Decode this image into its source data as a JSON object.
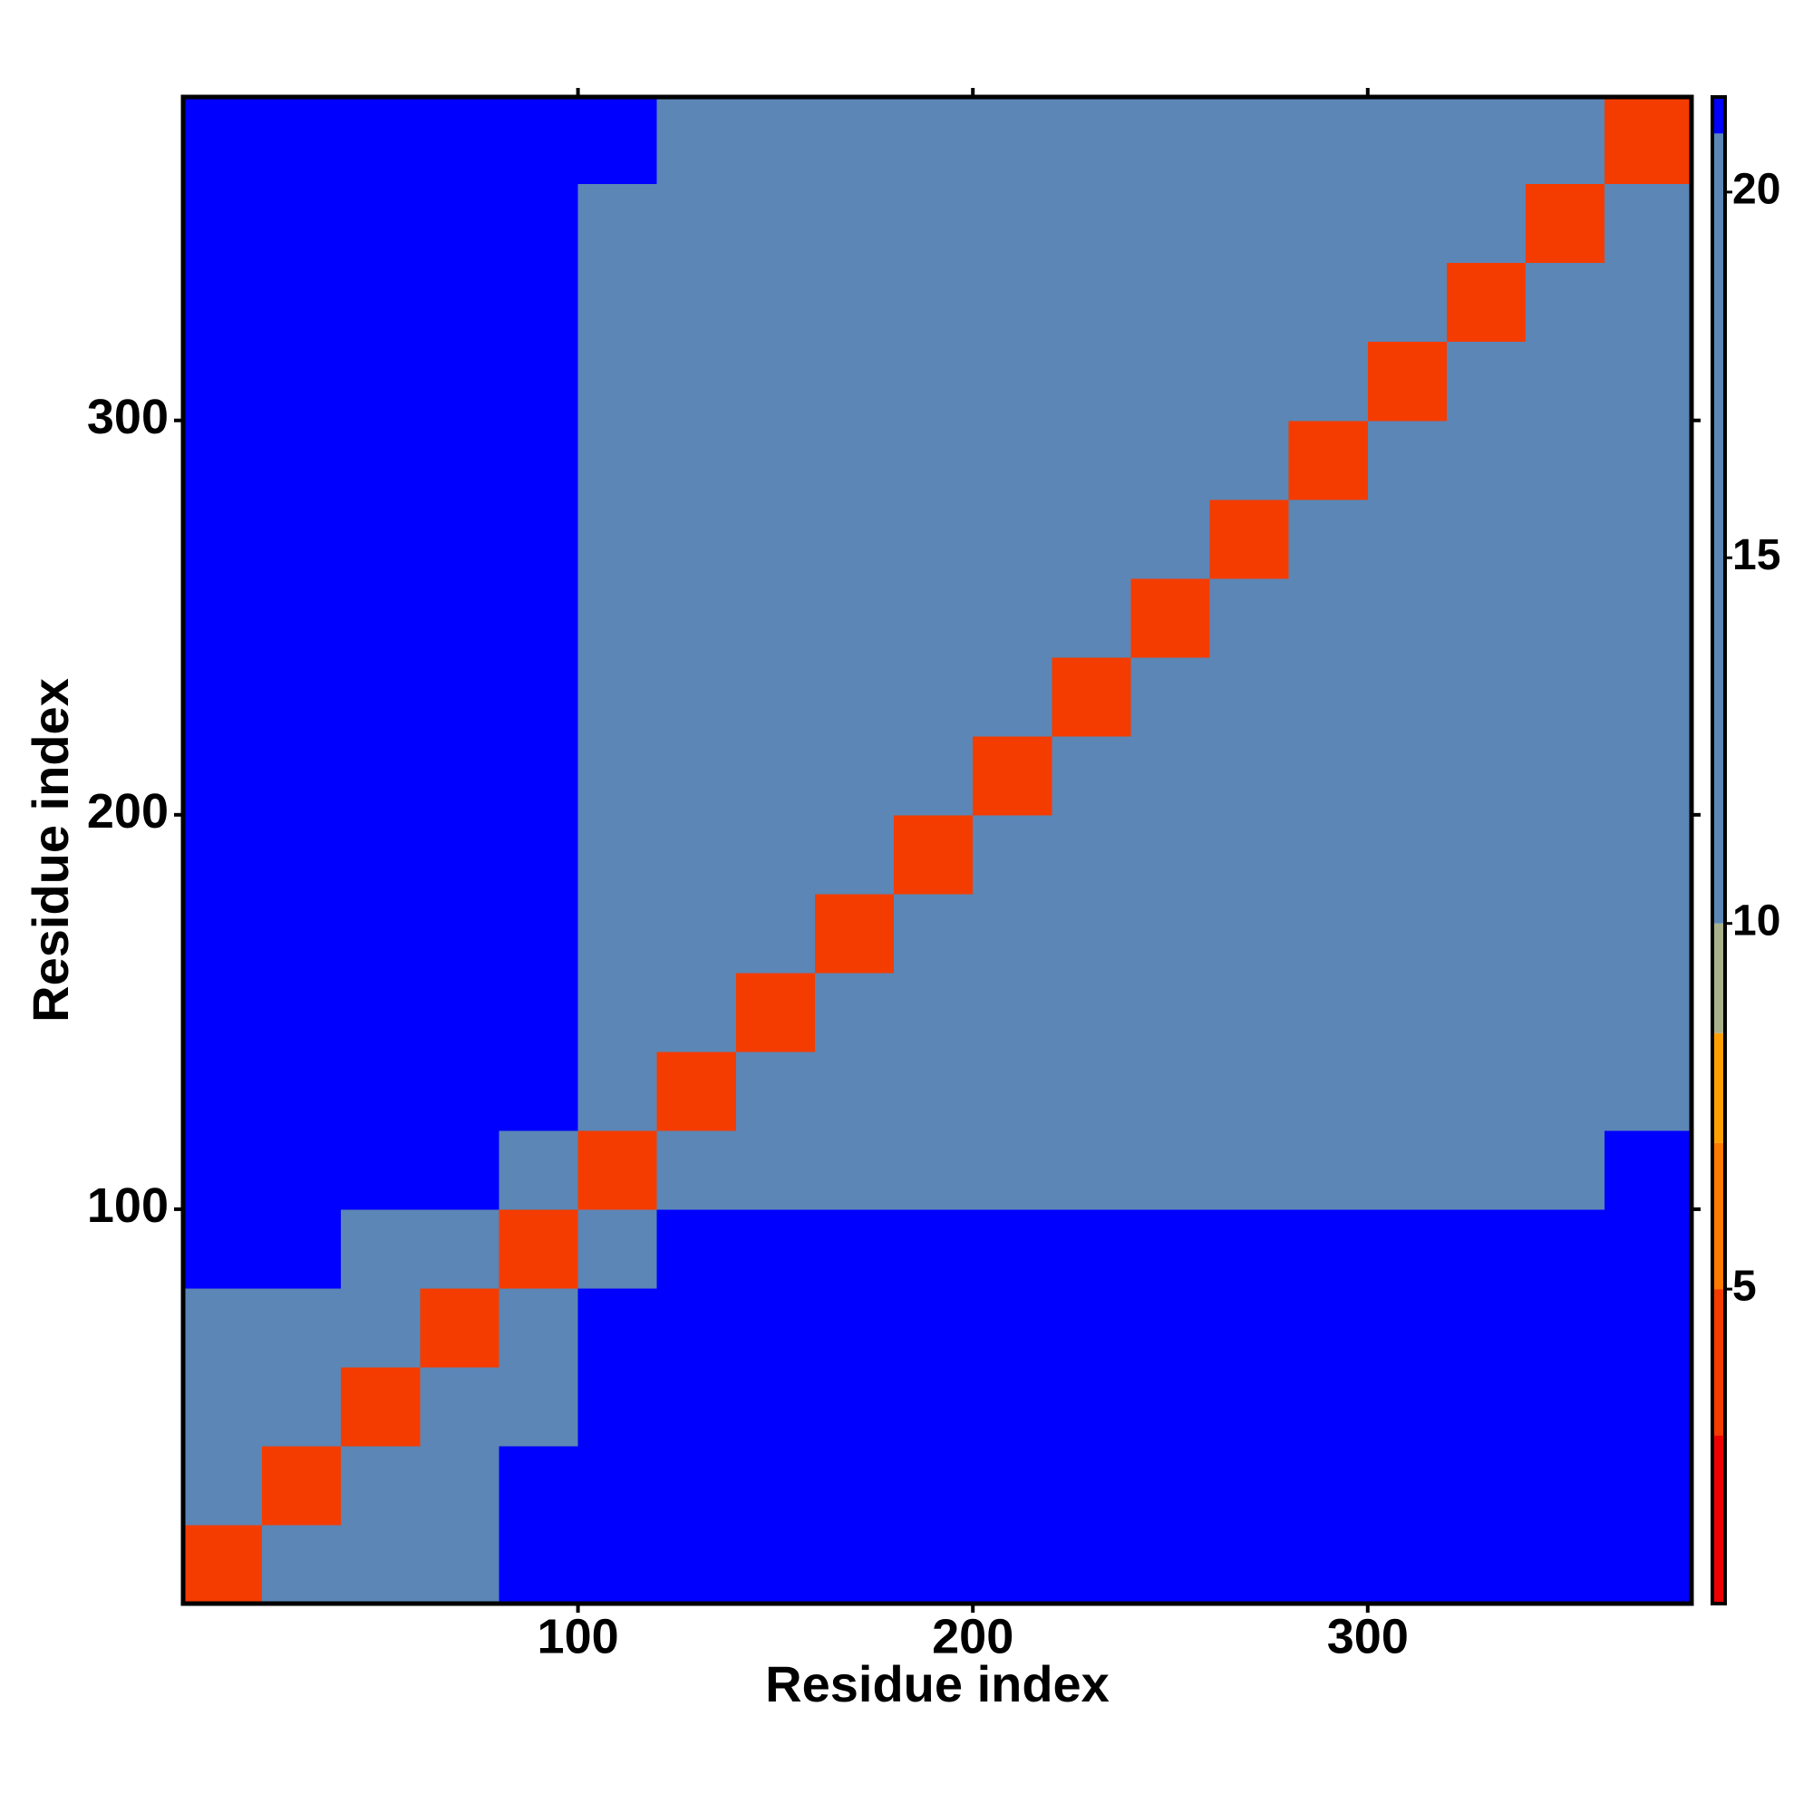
{
  "chart_data": {
    "type": "heatmap",
    "x_label": "Residue index",
    "y_label": "Residue index",
    "bins": [
      0,
      20,
      40,
      60,
      80,
      100,
      120,
      140,
      160,
      180,
      200,
      220,
      240,
      260,
      280,
      300,
      320,
      340,
      360,
      382
    ],
    "xlim": [
      0,
      382
    ],
    "ylim": [
      0,
      382
    ],
    "xticks": [
      100,
      200,
      300
    ],
    "yticks": [
      100,
      200,
      300
    ],
    "zlim": [
      0.7,
      21.3
    ],
    "zticks": [
      5,
      10,
      15,
      20
    ],
    "color_bands": [
      {
        "from": 0.7,
        "color": "#ee0000"
      },
      {
        "from": 3,
        "color": "#f43c00"
      },
      {
        "from": 5,
        "color": "#ff7a00"
      },
      {
        "from": 7,
        "color": "#ffa000"
      },
      {
        "from": 8.5,
        "color": "#a9b08c"
      },
      {
        "from": 10,
        "color": "#5b86b6"
      },
      {
        "from": 20.8,
        "color": "#0000ff"
      }
    ],
    "values": [
      [
        4,
        11,
        15,
        17,
        21.3,
        21.3,
        21.3,
        21.3,
        21.3,
        21.3,
        21.3,
        21.3,
        21.3,
        21.3,
        21.3,
        21.3,
        21.3,
        21.3,
        21.3
      ],
      [
        11,
        4,
        11,
        15,
        21.3,
        21.3,
        21.3,
        21.3,
        21.3,
        21.3,
        21.3,
        21.3,
        21.3,
        21.3,
        21.3,
        21.3,
        21.3,
        21.3,
        21.3
      ],
      [
        15,
        11,
        4,
        11,
        18,
        21.3,
        21.3,
        21.3,
        21.3,
        21.3,
        21.3,
        21.3,
        21.3,
        21.3,
        21.3,
        21.3,
        21.3,
        21.3,
        21.3
      ],
      [
        17,
        15,
        11,
        4,
        14,
        21.3,
        21.3,
        21.3,
        21.3,
        21.3,
        21.3,
        21.3,
        21.3,
        21.3,
        21.3,
        21.3,
        21.3,
        21.3,
        21.3
      ],
      [
        21.3,
        21.3,
        18,
        14,
        4,
        14,
        21.3,
        21.3,
        21.3,
        21.3,
        21.3,
        21.3,
        21.3,
        21.3,
        21.3,
        21.3,
        21.3,
        21.3,
        21.3
      ],
      [
        21.3,
        21.3,
        21.3,
        21.3,
        14,
        4,
        11,
        14,
        15,
        15,
        16,
        16,
        17,
        17,
        17,
        18,
        18,
        19,
        21.3
      ],
      [
        21.3,
        21.3,
        21.3,
        21.3,
        21.3,
        11,
        4,
        11,
        13,
        14,
        15,
        16,
        17,
        17,
        18,
        18,
        18,
        18,
        19
      ],
      [
        21.3,
        21.3,
        21.3,
        21.3,
        21.3,
        14,
        11,
        4,
        11,
        12,
        12,
        13,
        17,
        17,
        18,
        18,
        17,
        17,
        18
      ],
      [
        21.3,
        21.3,
        21.3,
        21.3,
        21.3,
        15,
        13,
        11,
        4,
        10,
        11,
        12,
        15,
        17,
        18,
        17,
        17,
        17,
        18
      ],
      [
        21.3,
        21.3,
        21.3,
        21.3,
        21.3,
        15,
        14,
        12,
        10,
        4,
        11,
        12,
        14,
        17,
        17,
        17,
        18,
        17,
        17
      ],
      [
        21.3,
        21.3,
        21.3,
        21.3,
        21.3,
        16,
        15,
        12,
        11,
        11,
        4,
        11,
        13,
        16,
        17,
        17,
        17,
        17,
        17
      ],
      [
        21.3,
        21.3,
        21.3,
        21.3,
        21.3,
        16,
        16,
        13,
        12,
        12,
        11,
        4,
        11,
        14,
        16,
        17,
        17,
        17,
        17
      ],
      [
        21.3,
        21.3,
        21.3,
        21.3,
        21.3,
        17,
        17,
        17,
        15,
        14,
        13,
        11,
        4,
        11,
        13,
        14,
        15,
        15,
        16
      ],
      [
        21.3,
        21.3,
        21.3,
        21.3,
        21.3,
        17,
        17,
        17,
        17,
        17,
        16,
        14,
        11,
        4,
        11,
        12,
        13,
        13,
        14
      ],
      [
        21.3,
        21.3,
        21.3,
        21.3,
        21.3,
        17,
        18,
        18,
        18,
        17,
        17,
        16,
        13,
        11,
        4,
        11,
        12,
        12,
        13
      ],
      [
        21.3,
        21.3,
        21.3,
        21.3,
        21.3,
        18,
        18,
        18,
        17,
        17,
        17,
        17,
        14,
        12,
        11,
        4,
        10,
        12,
        12
      ],
      [
        21.3,
        21.3,
        21.3,
        21.3,
        21.3,
        18,
        18,
        17,
        17,
        18,
        17,
        17,
        15,
        13,
        12,
        10,
        4,
        11,
        13
      ],
      [
        21.3,
        21.3,
        21.3,
        21.3,
        21.3,
        19,
        18,
        17,
        17,
        17,
        17,
        17,
        15,
        13,
        12,
        12,
        11,
        4,
        11
      ],
      [
        21.3,
        21.3,
        21.3,
        21.3,
        21.3,
        21.3,
        19,
        18,
        18,
        17,
        17,
        17,
        16,
        14,
        13,
        12,
        13,
        11,
        4
      ]
    ]
  }
}
